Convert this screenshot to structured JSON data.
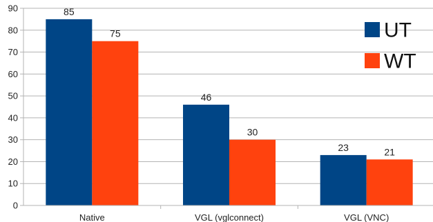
{
  "chart_data": {
    "type": "bar",
    "title": "",
    "xlabel": "",
    "ylabel": "",
    "categories": [
      "Native",
      "VGL (vglconnect)",
      "VGL (VNC)"
    ],
    "series": [
      {
        "name": "UT",
        "values": [
          85,
          46,
          23
        ],
        "color": "#004586"
      },
      {
        "name": "WT",
        "values": [
          75,
          30,
          21
        ],
        "color": "#ff420e"
      }
    ],
    "ylim": [
      0,
      90
    ],
    "yticks": [
      0,
      10,
      20,
      30,
      40,
      50,
      60,
      70,
      80,
      90
    ],
    "grid": true,
    "legend_position": "top-right",
    "data_labels": true
  }
}
